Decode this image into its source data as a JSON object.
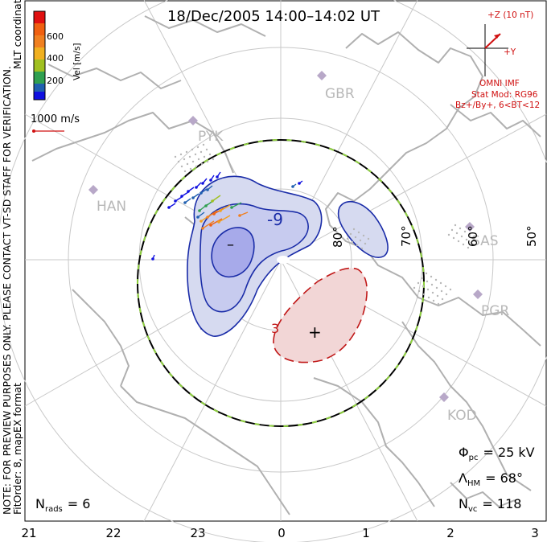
{
  "title": "18/Dec/2005 14:00–14:02 UT",
  "side_note": "NOTE: FOR PREVIEW PURPOSES ONLY. PLEASE CONTACT VT-SD STAFF FOR VERIFICATION.",
  "side_fit": "FitOrder: 8, mapEX format",
  "coord_label": "MLT coordinates",
  "colorbar": {
    "title": "Vel [m/s]",
    "ticks": [
      "600",
      "400",
      "200"
    ],
    "colors": [
      "#e01010",
      "#f06010",
      "#f0a020",
      "#a0c020",
      "#20a040",
      "#2050c0",
      "#1010e0"
    ]
  },
  "velocity_scale": "1000 m/s",
  "imf": {
    "z_label": "+Z (10 nT)",
    "y_label": "+Y",
    "source": "OMNI IMF",
    "model": "Stat Mod: RG96",
    "condition": "Bz+/By+, 6<BT<12"
  },
  "stations": [
    "GBR",
    "PYK",
    "HAN",
    "SAS",
    "PGR",
    "KOD"
  ],
  "latitudes": [
    "80°",
    "70°",
    "60°",
    "50°"
  ],
  "contours": {
    "negative_label": "-9",
    "positive_label": "3",
    "min_marker": "–",
    "max_marker": "+"
  },
  "stats": {
    "phi_sym": "Φ",
    "phi_sub": "pc",
    "phi_value": "= 25 kV",
    "lambda_sym": "Λ",
    "lambda_sub": "HM",
    "lambda_value": "= 68°",
    "n_sym": "N",
    "n_sub": "vc",
    "n_value": "= 118",
    "nrads_sym": "N",
    "nrads_sub": "rads",
    "nrads_value": "= 6"
  },
  "mlt_ticks": [
    "21",
    "22",
    "23",
    "0",
    "1",
    "2",
    "3"
  ]
}
